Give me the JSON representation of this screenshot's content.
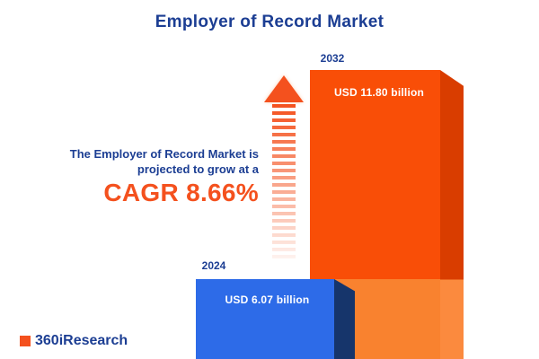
{
  "title": "Employer of Record Market",
  "chart_data": {
    "type": "bar",
    "title": "Employer of Record Market",
    "categories": [
      "2024",
      "2032"
    ],
    "values": [
      6.07,
      11.8
    ],
    "unit": "USD billion",
    "value_labels": [
      "USD 6.07 billion",
      "USD 11.80 billion"
    ],
    "cagr_percent": 8.66,
    "annotations": [
      "The Employer of Record Market is projected to grow at a CAGR 8.66%"
    ],
    "legend": "none",
    "grid": false,
    "bar_colors": [
      "#2d6be8",
      "#f94e07"
    ]
  },
  "annotation": {
    "line1": "The Employer of Record Market is",
    "line2": "projected to grow at a",
    "cagr": "CAGR 8.66%"
  },
  "logo": {
    "text": "360iResearch"
  },
  "colors": {
    "navy": "#1c3e93",
    "orange": "#f4511e",
    "bar_blue": "#2d6be8",
    "bar_blue_side": "#16356b",
    "bar_orange": "#f94e07",
    "bar_orange_side": "#d93d00",
    "bar_orange_light": "#f9822f",
    "background": "#ffffff"
  }
}
